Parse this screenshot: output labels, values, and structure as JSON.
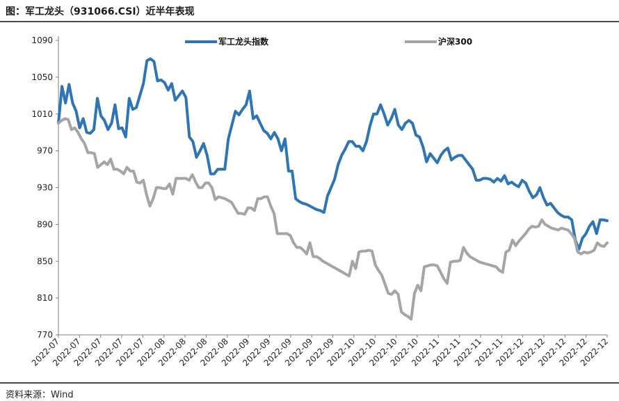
{
  "header": {
    "title": "图：军工龙头（931066.CSI）近半年表现"
  },
  "footer": {
    "source": "资料来源：Wind"
  },
  "chart_data": {
    "type": "line",
    "title": "图：军工龙头（931066.CSI）近半年表现",
    "xlabel": "",
    "ylabel": "",
    "ylim": [
      770,
      1090
    ],
    "yticks": [
      770,
      810,
      850,
      890,
      930,
      970,
      1010,
      1050,
      1090
    ],
    "grid": false,
    "legend": "top",
    "x_tick_labels": [
      "2022-07",
      "2022-07",
      "2022-07",
      "2022-07",
      "2022-07",
      "2022-08",
      "2022-08",
      "2022-08",
      "2022-08",
      "2022-09",
      "2022-09",
      "2022-09",
      "2022-09",
      "2022-09",
      "2022-10",
      "2022-10",
      "2022-10",
      "2022-10",
      "2022-11",
      "2022-11",
      "2022-11",
      "2022-11",
      "2022-12",
      "2022-12",
      "2022-12",
      "2022-12",
      "2022-12"
    ],
    "series": [
      {
        "name": "军工龙头指数",
        "color": "#2e75b6",
        "values": [
          1000,
          1040,
          1022,
          1042,
          1022,
          1013,
          995,
          1005,
          990,
          989,
          993,
          1027,
          1008,
          1003,
          993,
          1000,
          1020,
          994,
          995,
          985,
          1027,
          1015,
          1017,
          1030,
          1043,
          1068,
          1070,
          1067,
          1046,
          1047,
          1044,
          1036,
          1043,
          1025,
          1030,
          1035,
          1028,
          985,
          980,
          963,
          970,
          978,
          965,
          945,
          945,
          950,
          950,
          950,
          983,
          998,
          1013,
          1009,
          1015,
          1020,
          1035,
          1005,
          1008,
          1000,
          992,
          989,
          983,
          990,
          983,
          970,
          983,
          948,
          948,
          918,
          915,
          913,
          912,
          910,
          908,
          906,
          905,
          903,
          921,
          930,
          939,
          955,
          965,
          972,
          980,
          980,
          975,
          975,
          970,
          980,
          997,
          1010,
          1010,
          1020,
          1010,
          998,
          1005,
          1015,
          998,
          993,
          1000,
          1003,
          1000,
          987,
          985,
          974,
          958,
          967,
          962,
          957,
          965,
          970,
          973,
          960,
          963,
          965,
          965,
          960,
          955,
          950,
          938,
          938,
          940,
          940,
          939,
          936,
          940,
          937,
          943,
          934,
          936,
          933,
          931,
          938,
          935,
          926,
          919,
          922,
          930,
          919,
          911,
          913,
          908,
          903,
          900,
          898,
          898,
          895,
          873,
          863,
          875,
          880,
          888,
          893,
          880,
          895,
          895,
          894
        ]
      },
      {
        "name": "沪深300",
        "color": "#a5a5a5",
        "values": [
          1000,
          1003,
          1005,
          1004,
          993,
          995,
          990,
          983,
          978,
          968,
          968,
          967,
          952,
          955,
          958,
          955,
          961,
          950,
          950,
          948,
          945,
          952,
          948,
          948,
          936,
          935,
          938,
          922,
          910,
          918,
          930,
          930,
          929,
          929,
          934,
          923,
          940,
          940,
          940,
          940,
          938,
          944,
          936,
          930,
          930,
          935,
          935,
          930,
          917,
          920,
          919,
          918,
          916,
          914,
          908,
          902,
          902,
          901,
          908,
          908,
          905,
          918,
          918,
          920,
          920,
          910,
          902,
          880,
          880,
          880,
          880,
          878,
          870,
          865,
          865,
          862,
          858,
          870,
          855,
          855,
          853,
          850,
          848,
          846,
          844,
          842,
          840,
          838,
          836,
          834,
          850,
          842,
          860,
          861,
          861,
          862,
          861,
          846,
          840,
          835,
          825,
          815,
          814,
          818,
          814,
          795,
          792,
          790,
          787,
          815,
          824,
          818,
          844,
          845,
          846,
          846,
          845,
          838,
          831,
          826,
          849,
          850,
          850,
          851,
          865,
          859,
          855,
          853,
          851,
          849,
          848,
          847,
          846,
          845,
          844,
          840,
          838,
          860,
          862,
          873,
          867,
          872,
          876,
          880,
          885,
          888,
          887,
          888,
          895,
          890,
          888,
          886,
          885,
          884,
          886,
          885,
          884,
          880,
          875,
          860,
          858,
          860,
          859,
          860,
          862,
          870,
          867,
          866,
          870
        ]
      }
    ]
  }
}
